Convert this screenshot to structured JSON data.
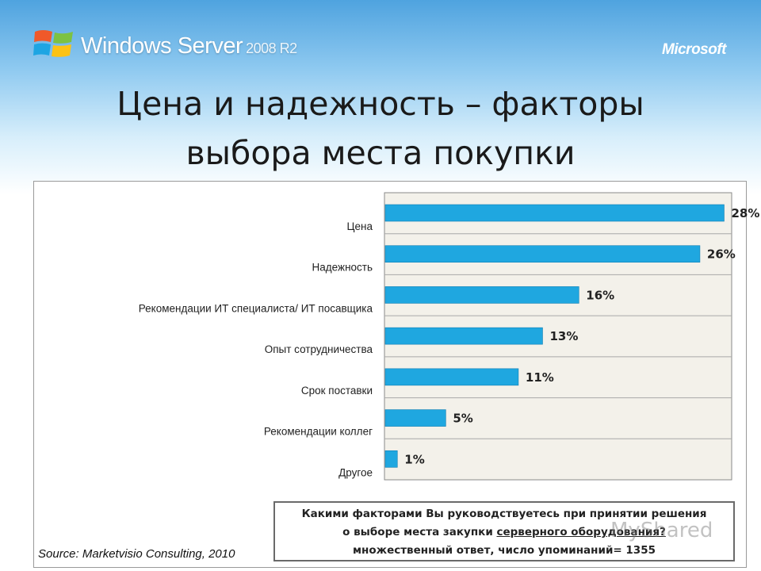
{
  "header": {
    "brand": "Windows Server",
    "version": "2008 R2",
    "ms_logo": "Microsoft"
  },
  "slide": {
    "title_line1": "Цена и надежность – факторы",
    "title_line2": "выбора места покупки"
  },
  "chart_data": {
    "type": "bar",
    "orientation": "horizontal",
    "categories": [
      "Цена",
      "Надежность",
      "Рекомендации ИТ специалиста/ ИТ посавщика",
      "Опыт сотрудничества",
      "Срок поставки",
      "Рекомендации коллег",
      "Другое"
    ],
    "values": [
      28,
      26,
      16,
      13,
      11,
      5,
      1
    ],
    "value_labels": [
      "28%",
      "26%",
      "16%",
      "13%",
      "11%",
      "5%",
      "1%"
    ],
    "xlim": [
      0,
      30
    ],
    "grid": true,
    "bar_color": "#1fa7e0"
  },
  "question": {
    "line1": "Какими факторами Вы руководствуетесь при принятии решения",
    "line2_prefix": "о выборе места закупки ",
    "line2_underlined": "серверного оборудования?",
    "line3": "множественный ответ, число упоминаний= 1355"
  },
  "source": "Source: Marketvisio Consulting, 2010",
  "watermark": "MyShared"
}
